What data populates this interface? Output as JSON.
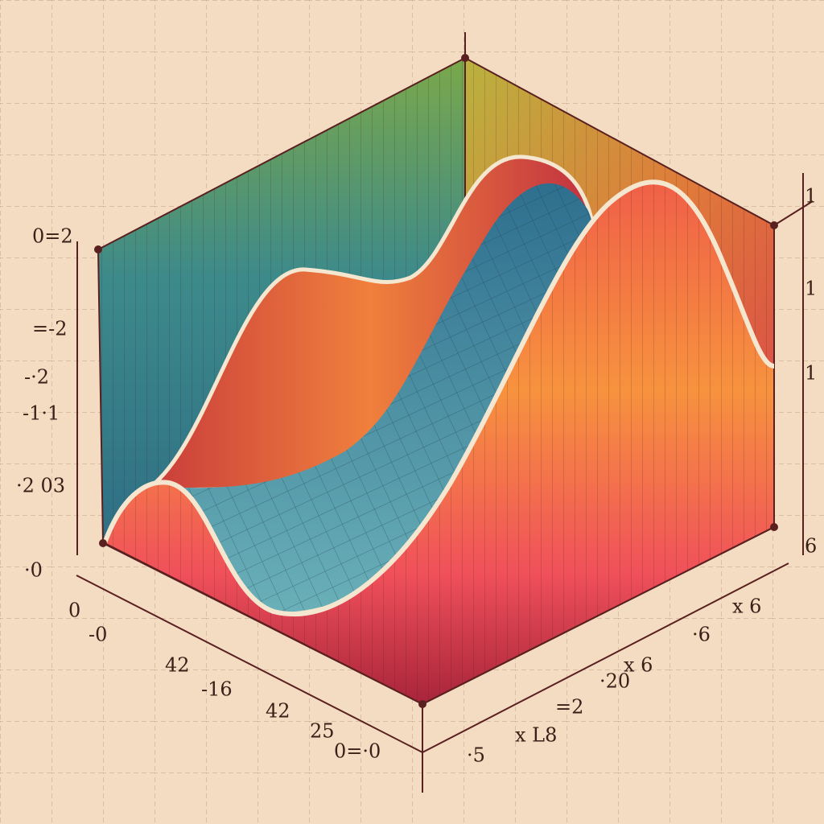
{
  "labels": [
    "0=2",
    "=-2",
    "-·2",
    "-1·1",
    "·2 03",
    "·0",
    "0",
    "-0",
    "42",
    "-16",
    "42",
    "25",
    "0=·0",
    "·5",
    "x L8",
    "=2",
    "·20",
    "x 6",
    "·6",
    "x 6",
    "1",
    "1",
    "1",
    "6"
  ]
}
